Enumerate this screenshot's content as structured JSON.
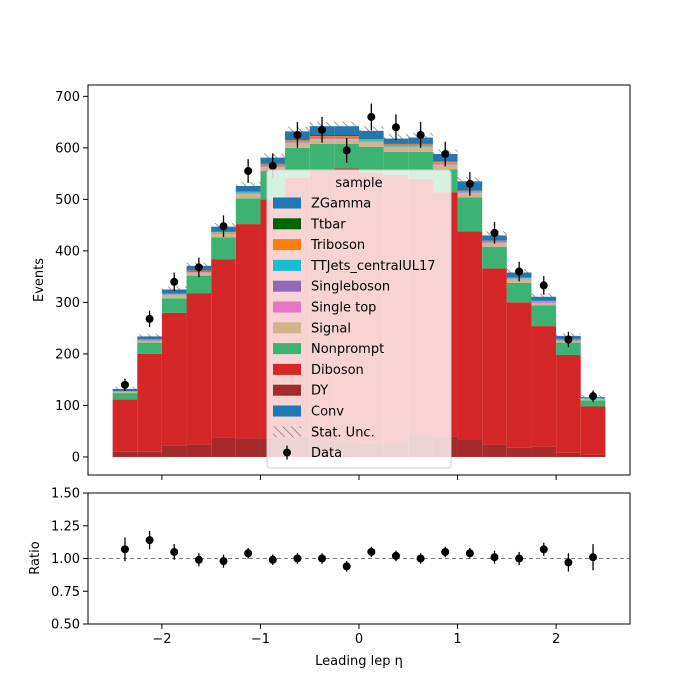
{
  "chart_data": {
    "type": "bar",
    "stacked": true,
    "bin_edges": [
      -2.5,
      -2.25,
      -2.0,
      -1.75,
      -1.5,
      -1.25,
      -1.0,
      -0.75,
      -0.5,
      -0.25,
      0.0,
      0.25,
      0.5,
      0.75,
      1.0,
      1.25,
      1.5,
      1.75,
      2.0,
      2.25,
      2.5
    ],
    "x_ticks": [
      -2,
      -1,
      0,
      1,
      2
    ],
    "x_tick_labels": [
      "−2",
      "−1",
      "0",
      "1",
      "2"
    ],
    "xlabel": "Leading lep η",
    "main": {
      "ylabel": "Events",
      "ylim": [
        -35,
        722
      ],
      "y_ticks": [
        0,
        100,
        200,
        300,
        400,
        500,
        600,
        700
      ],
      "y_tick_labels": [
        "0",
        "100",
        "200",
        "300",
        "400",
        "500",
        "600",
        "700"
      ]
    },
    "ratio": {
      "ylabel": "Ratio",
      "ylim": [
        0.5,
        1.5
      ],
      "y_ticks": [
        0.5,
        0.75,
        1.0,
        1.25,
        1.5
      ],
      "y_tick_labels": [
        "0.50",
        "0.75",
        "1.00",
        "1.25",
        "1.50"
      ],
      "reference_line": 1.0
    },
    "legend": {
      "title": "sample",
      "placement": "center",
      "entries": [
        {
          "label": "ZGamma",
          "kind": "patch",
          "color": "#1f77b4"
        },
        {
          "label": "Ttbar",
          "kind": "patch",
          "color": "#006400"
        },
        {
          "label": "Triboson",
          "kind": "patch",
          "color": "#ff7f0e"
        },
        {
          "label": "TTJets_centralUL17",
          "kind": "patch",
          "color": "#17becf"
        },
        {
          "label": "Singleboson",
          "kind": "patch",
          "color": "#9467bd"
        },
        {
          "label": "Single top",
          "kind": "patch",
          "color": "#e377c2"
        },
        {
          "label": "Signal",
          "kind": "patch",
          "color": "#d2b48c"
        },
        {
          "label": "Nonprompt",
          "kind": "patch",
          "color": "#3cb371"
        },
        {
          "label": "Diboson",
          "kind": "patch",
          "color": "#d62728"
        },
        {
          "label": "DY",
          "kind": "patch",
          "color": "#a52a2a"
        },
        {
          "label": "Conv",
          "kind": "patch",
          "color": "#1f77b4"
        },
        {
          "label": "Stat. Unc.",
          "kind": "hatch",
          "color": "#666666"
        },
        {
          "label": "Data",
          "kind": "errorbar",
          "color": "#000000"
        }
      ]
    },
    "series": [
      {
        "name": "DY",
        "color": "#a52a2a",
        "values": [
          10,
          10,
          22,
          24,
          38,
          36,
          36,
          40,
          32,
          28,
          26,
          28,
          44,
          40,
          34,
          24,
          18,
          20,
          8,
          4
        ]
      },
      {
        "name": "Diboson",
        "color": "#d62728",
        "values": [
          102,
          190,
          258,
          294,
          346,
          416,
          464,
          502,
          524,
          532,
          526,
          520,
          496,
          474,
          404,
          342,
          282,
          234,
          190,
          94
        ]
      },
      {
        "name": "Nonprompt",
        "color": "#3cb371",
        "values": [
          12,
          22,
          28,
          34,
          42,
          50,
          55,
          58,
          52,
          48,
          50,
          44,
          52,
          44,
          66,
          42,
          38,
          40,
          24,
          12
        ]
      },
      {
        "name": "Signal",
        "color": "#d2b48c",
        "values": [
          3,
          4,
          5,
          6,
          7,
          8,
          8,
          9,
          9,
          9,
          9,
          9,
          9,
          9,
          8,
          7,
          6,
          5,
          4,
          3
        ]
      },
      {
        "name": "Single top",
        "color": "#e377c2",
        "values": [
          0,
          0,
          1,
          1,
          1,
          1,
          1,
          1,
          1,
          1,
          1,
          1,
          1,
          1,
          1,
          1,
          1,
          1,
          0,
          0
        ]
      },
      {
        "name": "Singleboson",
        "color": "#9467bd",
        "values": [
          0,
          1,
          1,
          1,
          1,
          1,
          1,
          1,
          1,
          1,
          1,
          1,
          1,
          1,
          1,
          1,
          1,
          1,
          1,
          0
        ]
      },
      {
        "name": "TTJets_centralUL17",
        "color": "#17becf",
        "values": [
          1,
          1,
          1,
          1,
          1,
          2,
          2,
          2,
          2,
          2,
          2,
          2,
          2,
          2,
          2,
          2,
          1,
          1,
          1,
          1
        ]
      },
      {
        "name": "Triboson",
        "color": "#ff7f0e",
        "values": [
          0,
          1,
          1,
          1,
          1,
          1,
          1,
          2,
          2,
          2,
          2,
          2,
          2,
          2,
          1,
          1,
          1,
          1,
          1,
          0
        ]
      },
      {
        "name": "Ttbar",
        "color": "#006400",
        "values": [
          0,
          0,
          0,
          0,
          0,
          0,
          1,
          1,
          1,
          1,
          1,
          1,
          1,
          1,
          0,
          0,
          0,
          0,
          0,
          0
        ]
      },
      {
        "name": "ZGamma",
        "color": "#1f77b4",
        "values": [
          4,
          5,
          8,
          9,
          10,
          11,
          12,
          16,
          18,
          18,
          15,
          10,
          12,
          14,
          18,
          10,
          10,
          8,
          6,
          2
        ]
      }
    ],
    "stat_unc": [
      4,
      5,
      6,
      6,
      7,
      8,
      8,
      9,
      9,
      9,
      9,
      9,
      9,
      9,
      8,
      8,
      7,
      6,
      5,
      4
    ],
    "data": {
      "name": "Data",
      "values": [
        140,
        268,
        340,
        368,
        448,
        555,
        565,
        625,
        635,
        595,
        660,
        640,
        625,
        588,
        530,
        435,
        360,
        333,
        228,
        118
      ],
      "errors": [
        12,
        16,
        18,
        19,
        21,
        23,
        24,
        25,
        25,
        24,
        26,
        25,
        25,
        24,
        23,
        21,
        19,
        18,
        15,
        11
      ]
    },
    "ratio_data": {
      "values": [
        1.07,
        1.14,
        1.05,
        0.99,
        0.98,
        1.04,
        0.99,
        1.0,
        1.0,
        0.94,
        1.05,
        1.02,
        1.0,
        1.05,
        1.04,
        1.01,
        1.0,
        1.07,
        0.97,
        1.01
      ],
      "errors": [
        0.09,
        0.07,
        0.06,
        0.05,
        0.05,
        0.04,
        0.04,
        0.04,
        0.04,
        0.04,
        0.04,
        0.04,
        0.04,
        0.04,
        0.04,
        0.05,
        0.05,
        0.05,
        0.07,
        0.1
      ]
    }
  }
}
